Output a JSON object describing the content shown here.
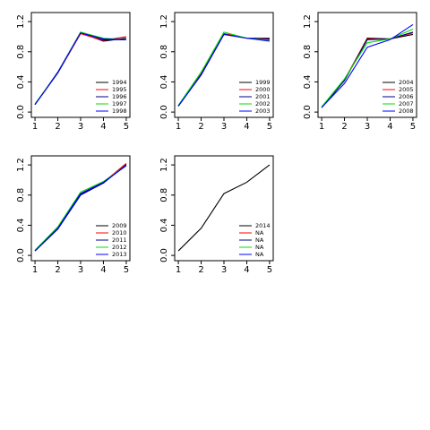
{
  "chart_data": [
    {
      "type": "line",
      "x": [
        1,
        2,
        3,
        4,
        5
      ],
      "xlim": [
        0.84,
        5.16
      ],
      "xticks": [
        1,
        2,
        3,
        4,
        5
      ],
      "ylim": [
        -0.07,
        1.32
      ],
      "yticks": [
        {
          "value": 0,
          "label": "0.0"
        },
        0.4,
        0.8,
        1.2
      ],
      "legend": "bottomright",
      "series": [
        {
          "name": "1994",
          "color": "#000000",
          "values": [
            0.1,
            0.52,
            1.05,
            0.94,
            0.98
          ]
        },
        {
          "name": "1995",
          "color": "#ff0000",
          "values": [
            0.1,
            0.52,
            1.04,
            0.95,
            1.0
          ]
        },
        {
          "name": "1996",
          "color": "#00008b",
          "values": [
            0.1,
            0.53,
            1.06,
            0.96,
            0.96
          ]
        },
        {
          "name": "1997",
          "color": "#00e000",
          "values": [
            0.11,
            0.52,
            1.06,
            0.98,
            0.96
          ]
        },
        {
          "name": "1998",
          "color": "#0000ff",
          "values": [
            0.1,
            0.52,
            1.05,
            0.97,
            0.96
          ]
        }
      ]
    },
    {
      "type": "line",
      "x": [
        1,
        2,
        3,
        4,
        5
      ],
      "xlim": [
        0.84,
        5.16
      ],
      "xticks": [
        1,
        2,
        3,
        4,
        5
      ],
      "ylim": [
        -0.07,
        1.32
      ],
      "yticks": [
        {
          "value": 0,
          "label": "0.0"
        },
        0.4,
        0.8,
        1.2
      ],
      "legend": "bottomright",
      "series": [
        {
          "name": "1999",
          "color": "#000000",
          "values": [
            0.08,
            0.5,
            1.04,
            0.98,
            0.97
          ]
        },
        {
          "name": "2000",
          "color": "#ff0000",
          "values": [
            0.08,
            0.51,
            1.04,
            0.98,
            0.96
          ]
        },
        {
          "name": "2001",
          "color": "#00008b",
          "values": [
            0.08,
            0.5,
            1.03,
            0.98,
            0.98
          ]
        },
        {
          "name": "2002",
          "color": "#00e000",
          "values": [
            0.09,
            0.53,
            1.06,
            0.98,
            0.95
          ]
        },
        {
          "name": "2003",
          "color": "#0000ff",
          "values": [
            0.08,
            0.49,
            1.03,
            0.98,
            0.94
          ]
        }
      ]
    },
    {
      "type": "line",
      "x": [
        1,
        2,
        3,
        4,
        5
      ],
      "xlim": [
        0.84,
        5.16
      ],
      "xticks": [
        1,
        2,
        3,
        4,
        5
      ],
      "ylim": [
        -0.07,
        1.32
      ],
      "yticks": [
        {
          "value": 0,
          "label": "0.0"
        },
        0.4,
        0.8,
        1.2
      ],
      "legend": "bottomright",
      "series": [
        {
          "name": "2004",
          "color": "#000000",
          "values": [
            0.06,
            0.42,
            0.98,
            0.97,
            1.03
          ]
        },
        {
          "name": "2005",
          "color": "#ff0000",
          "values": [
            0.06,
            0.43,
            0.97,
            0.97,
            1.05
          ]
        },
        {
          "name": "2006",
          "color": "#00008b",
          "values": [
            0.06,
            0.42,
            0.96,
            0.97,
            1.06
          ]
        },
        {
          "name": "2007",
          "color": "#00e000",
          "values": [
            0.07,
            0.44,
            0.92,
            0.97,
            1.1
          ]
        },
        {
          "name": "2008",
          "color": "#0000ff",
          "values": [
            0.06,
            0.38,
            0.86,
            0.96,
            1.16
          ]
        }
      ]
    },
    {
      "type": "line",
      "x": [
        1,
        2,
        3,
        4,
        5
      ],
      "xlim": [
        0.84,
        5.16
      ],
      "xticks": [
        1,
        2,
        3,
        4,
        5
      ],
      "ylim": [
        -0.07,
        1.32
      ],
      "yticks": [
        {
          "value": 0,
          "label": "0.0"
        },
        0.4,
        0.8,
        1.2
      ],
      "legend": "bottomright",
      "series": [
        {
          "name": "2009",
          "color": "#000000",
          "values": [
            0.06,
            0.35,
            0.81,
            0.96,
            1.21
          ]
        },
        {
          "name": "2010",
          "color": "#ff0000",
          "values": [
            0.06,
            0.36,
            0.82,
            0.97,
            1.22
          ]
        },
        {
          "name": "2011",
          "color": "#00008b",
          "values": [
            0.06,
            0.35,
            0.8,
            0.96,
            1.2
          ]
        },
        {
          "name": "2012",
          "color": "#00e000",
          "values": [
            0.07,
            0.38,
            0.84,
            0.98,
            1.19
          ]
        },
        {
          "name": "2013",
          "color": "#0000ff",
          "values": [
            0.06,
            0.36,
            0.82,
            0.97,
            1.19
          ]
        }
      ]
    },
    {
      "type": "line",
      "x": [
        1,
        2,
        3,
        4,
        5
      ],
      "xlim": [
        0.84,
        5.16
      ],
      "xticks": [
        1,
        2,
        3,
        4,
        5
      ],
      "ylim": [
        -0.07,
        1.32
      ],
      "yticks": [
        {
          "value": 0,
          "label": "0.0"
        },
        0.4,
        0.8,
        1.2
      ],
      "legend": "bottomright",
      "series": [
        {
          "name": "2014",
          "color": "#000000",
          "values": [
            0.06,
            0.36,
            0.82,
            0.97,
            1.2
          ]
        },
        {
          "name": "NA",
          "color": "#ff0000",
          "values": [
            null,
            null,
            null,
            null,
            null
          ]
        },
        {
          "name": "NA",
          "color": "#00008b",
          "values": [
            null,
            null,
            null,
            null,
            null
          ]
        },
        {
          "name": "NA",
          "color": "#00e000",
          "values": [
            null,
            null,
            null,
            null,
            null
          ]
        },
        {
          "name": "NA",
          "color": "#0000ff",
          "values": [
            null,
            null,
            null,
            null,
            null
          ]
        }
      ]
    }
  ]
}
